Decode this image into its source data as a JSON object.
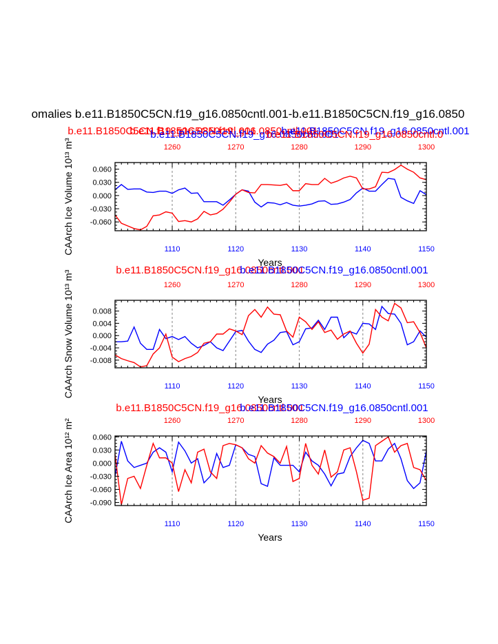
{
  "page": {
    "main_title": "omalies b.e11.B1850C5CN.f19_g16.0850cntl.001-b.e11.B1850C5CN.f19_g16.0850",
    "colors": {
      "blue": "#0000ff",
      "red": "#ff0000",
      "axis": "#000000",
      "grid": "#999999"
    }
  },
  "chart_data": [
    {
      "type": "line",
      "name": "ice-volume",
      "title_overlaps": [
        {
          "text": "b.e11.B1850C5CN.f19_g16.0850cntl.001",
          "color": "red"
        },
        {
          "text": "b.e11.B1850C5CN.f19_g16.0850cntl.001",
          "color": "red"
        },
        {
          "text": "b.e11.B1850C5CN.f19_g16.0850cntl.001",
          "color": "blue"
        },
        {
          "text": "b.e11.B1850C5CN.f19_g16.0850cntl.001",
          "color": "blue"
        },
        {
          "text": "b.e11.B1850C5CN.f19_g16.0850cntl.0",
          "color": "red"
        }
      ],
      "ylabel": "CAArch Ice Volume 10¹³ m³",
      "xlabel": "Years",
      "xlim_bottom": [
        1101,
        1150
      ],
      "xlim_top": [
        1251,
        1300
      ],
      "ylim": [
        -0.08,
        0.075
      ],
      "yticks": [
        0.06,
        0.03,
        0.0,
        -0.03,
        -0.06
      ],
      "ytick_labels": [
        "0.060",
        "0.030",
        "0.000",
        "-0.030",
        "-0.060"
      ],
      "xticks_bottom": [
        1110,
        1120,
        1130,
        1140,
        1150
      ],
      "xticks_top": [
        1260,
        1270,
        1280,
        1290,
        1300
      ],
      "grid_x": [
        1110,
        1120,
        1130,
        1140
      ],
      "series": [
        {
          "name": "b.e11.B1850C5CN.f19_g16.0850cntl.001 (years 1101-1150)",
          "color": "blue",
          "values": [
            0.013,
            0.025,
            0.014,
            0.015,
            0.015,
            0.008,
            0.007,
            0.01,
            0.01,
            0.005,
            0.013,
            0.017,
            0.005,
            0.006,
            -0.014,
            -0.014,
            -0.014,
            -0.022,
            -0.01,
            0.003,
            0.013,
            0.01,
            -0.015,
            -0.026,
            -0.016,
            -0.017,
            -0.021,
            -0.016,
            -0.022,
            -0.024,
            -0.022,
            -0.019,
            -0.013,
            -0.012,
            -0.02,
            -0.019,
            -0.015,
            -0.009,
            0.006,
            0.017,
            0.01,
            0.01,
            0.025,
            0.039,
            0.037,
            -0.004,
            -0.012,
            -0.018,
            0.011,
            0.002
          ]
        },
        {
          "name": "b.e11.B1850C5CN.f19_g16.0850cntl.001 (years 1251-1300)",
          "color": "red",
          "values": [
            -0.044,
            -0.063,
            -0.069,
            -0.075,
            -0.078,
            -0.07,
            -0.046,
            -0.044,
            -0.037,
            -0.04,
            -0.059,
            -0.057,
            -0.06,
            -0.053,
            -0.036,
            -0.044,
            -0.041,
            -0.031,
            -0.015,
            0.003,
            0.013,
            0.007,
            0.006,
            0.025,
            0.025,
            0.024,
            0.023,
            0.026,
            0.011,
            0.011,
            0.027,
            0.025,
            0.025,
            0.039,
            0.028,
            0.033,
            0.04,
            0.044,
            0.04,
            0.015,
            0.015,
            0.02,
            0.053,
            0.052,
            0.059,
            0.069,
            0.06,
            0.053,
            0.04,
            0.036
          ]
        }
      ]
    },
    {
      "type": "line",
      "name": "snow-volume",
      "title_overlaps": [
        {
          "text": "b.e11.B1850C5CN.f19_g16.0850cntl.001",
          "color": "red"
        },
        {
          "text": "b.e11.B1850C5CN.f19_g16.0850cntl.001",
          "color": "blue"
        }
      ],
      "ylabel": "CAArch Snow Volume 10¹³ m³",
      "xlabel": "Years",
      "xlim_bottom": [
        1101,
        1150
      ],
      "xlim_top": [
        1251,
        1300
      ],
      "ylim": [
        -0.0105,
        0.0115
      ],
      "yticks": [
        0.008,
        0.004,
        0.0,
        -0.004,
        -0.008
      ],
      "ytick_labels": [
        "0.008",
        "0.004",
        "0.000",
        "-0.004",
        "-0.008"
      ],
      "xticks_bottom": [
        1110,
        1120,
        1130,
        1140,
        1150
      ],
      "xticks_top": [
        1260,
        1270,
        1280,
        1290,
        1300
      ],
      "grid_x": [
        1110,
        1120,
        1130,
        1140
      ],
      "series": [
        {
          "name": "b.e11.B1850C5CN.f19_g16.0850cntl.001 (years 1101-1150)",
          "color": "blue",
          "values": [
            -0.002,
            -0.002,
            -0.0018,
            0.0028,
            -0.0025,
            -0.0045,
            -0.0045,
            0.002,
            -0.001,
            -0.0003,
            -0.0013,
            -0.0003,
            -0.0025,
            -0.004,
            -0.0032,
            -0.002,
            -0.004,
            -0.0049,
            -0.0018,
            0.0013,
            0.0017,
            -0.0018,
            -0.0045,
            -0.0055,
            -0.0028,
            -0.0015,
            0.001,
            0.0013,
            -0.003,
            -0.002,
            0.0022,
            0.0025,
            0.005,
            0.002,
            0.006,
            0.006,
            -0.0007,
            0.0013,
            0.0005,
            0.004,
            0.0038,
            0.002,
            0.0095,
            0.0072,
            0.007,
            0.004,
            -0.003,
            -0.002,
            0.0015,
            -0.0005
          ]
        },
        {
          "name": "b.e11.B1850C5CN.f19_g16.0850cntl.001 (years 1251-1300)",
          "color": "red",
          "values": [
            -0.0063,
            -0.0075,
            -0.0082,
            -0.0088,
            -0.0102,
            -0.0098,
            -0.006,
            -0.004,
            0.0005,
            -0.007,
            -0.0085,
            -0.0075,
            -0.0068,
            -0.0055,
            -0.0025,
            -0.002,
            0.0005,
            0.0005,
            0.0022,
            0.0015,
            0.0003,
            0.0065,
            0.0085,
            0.006,
            0.0093,
            0.007,
            0.0068,
            0.0015,
            -0.0005,
            0.006,
            0.0045,
            0.002,
            0.0045,
            0.001,
            0.0018,
            -0.0012,
            0.0005,
            0.0015,
            -0.0025,
            -0.0057,
            -0.0028,
            0.0085,
            0.006,
            0.0048,
            0.0105,
            0.009,
            0.0042,
            0.0045,
            0.001,
            -0.004
          ]
        }
      ]
    },
    {
      "type": "line",
      "name": "ice-area",
      "title_overlaps": [
        {
          "text": "b.e11.B1850C5CN.f19_g16.0850cntl.001",
          "color": "red"
        },
        {
          "text": "b.e11.B1850C5CN.f19_g16.0850cntl.001",
          "color": "blue"
        }
      ],
      "ylabel": "CAArch Ice Area 10¹² m²",
      "xlabel": "Years",
      "xlim_bottom": [
        1101,
        1150
      ],
      "xlim_top": [
        1251,
        1300
      ],
      "ylim": [
        -0.097,
        0.062
      ],
      "yticks": [
        0.06,
        0.03,
        0.0,
        -0.03,
        -0.06,
        -0.09
      ],
      "ytick_labels": [
        "0.060",
        "0.030",
        "0.000",
        "-0.030",
        "-0.060",
        "-0.090"
      ],
      "xticks_bottom": [
        1110,
        1120,
        1130,
        1140,
        1150
      ],
      "xticks_top": [
        1260,
        1270,
        1280,
        1290,
        1300
      ],
      "grid_x": [
        1110,
        1120,
        1130,
        1140
      ],
      "series": [
        {
          "name": "b.e11.B1850C5CN.f19_g16.0850cntl.001 (years 1101-1150)",
          "color": "blue",
          "values": [
            -0.03,
            0.05,
            0.005,
            -0.01,
            -0.005,
            0.0,
            0.025,
            0.035,
            0.025,
            -0.02,
            0.048,
            0.028,
            0.0,
            0.01,
            -0.045,
            -0.03,
            0.022,
            -0.01,
            -0.005,
            0.042,
            0.035,
            0.02,
            0.015,
            -0.047,
            -0.053,
            0.012,
            -0.005,
            -0.005,
            -0.005,
            -0.02,
            0.025,
            0.005,
            -0.005,
            -0.025,
            -0.052,
            -0.025,
            -0.022,
            0.015,
            0.035,
            0.052,
            0.045,
            0.005,
            0.005,
            0.032,
            0.045,
            0.01,
            -0.04,
            -0.058,
            -0.045,
            0.028
          ]
        },
        {
          "name": "b.e11.B1850C5CN.f19_g16.0850cntl.001 (years 1251-1300)",
          "color": "red",
          "values": [
            0.02,
            -0.095,
            -0.035,
            -0.03,
            -0.058,
            -0.005,
            0.045,
            0.012,
            0.012,
            0.0,
            -0.065,
            -0.015,
            -0.045,
            0.025,
            0.032,
            -0.02,
            -0.035,
            0.04,
            0.045,
            0.042,
            0.035,
            0.01,
            0.0,
            0.04,
            0.023,
            0.015,
            0.0,
            0.038,
            -0.042,
            -0.035,
            0.045,
            -0.005,
            -0.025,
            0.03,
            -0.032,
            -0.02,
            0.03,
            0.035,
            -0.02,
            -0.085,
            -0.08,
            0.04,
            0.05,
            0.06,
            0.025,
            0.04,
            0.045,
            -0.01,
            -0.015,
            -0.04
          ]
        }
      ]
    }
  ]
}
